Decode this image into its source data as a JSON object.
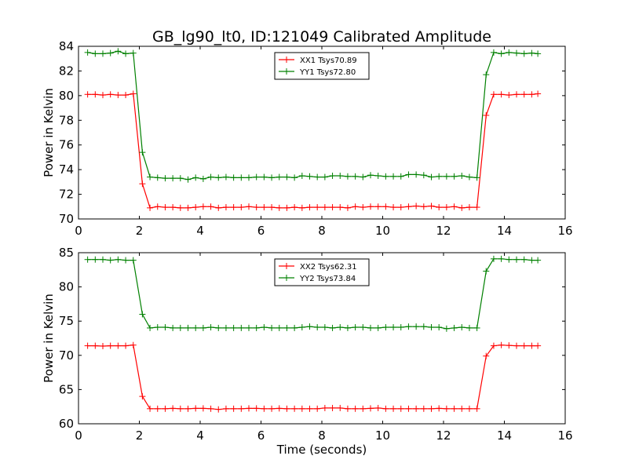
{
  "figure": {
    "title": "GB_lg90_lt0, ID:121049 Calibrated Amplitude"
  },
  "chart_data": [
    {
      "type": "line",
      "title": "GB_lg90_lt0, ID:121049 Calibrated Amplitude",
      "xlabel": "",
      "ylabel": "Power in Kelvin",
      "xlim": [
        0,
        16
      ],
      "ylim": [
        70,
        84
      ],
      "xticks": [
        0,
        2,
        4,
        6,
        8,
        10,
        12,
        14,
        16
      ],
      "yticks": [
        70,
        72,
        74,
        76,
        78,
        80,
        82,
        84
      ],
      "grid": false,
      "legend": "top-center",
      "x": [
        0.3,
        0.55,
        0.8,
        1.05,
        1.3,
        1.55,
        1.8,
        2.1,
        2.35,
        2.6,
        2.85,
        3.1,
        3.35,
        3.6,
        3.85,
        4.1,
        4.35,
        4.6,
        4.85,
        5.1,
        5.35,
        5.6,
        5.85,
        6.1,
        6.35,
        6.6,
        6.85,
        7.1,
        7.35,
        7.6,
        7.85,
        8.1,
        8.35,
        8.6,
        8.85,
        9.1,
        9.35,
        9.6,
        9.85,
        10.1,
        10.35,
        10.6,
        10.85,
        11.1,
        11.35,
        11.6,
        11.85,
        12.1,
        12.35,
        12.6,
        12.85,
        13.1,
        13.4,
        13.65,
        13.9,
        14.15,
        14.4,
        14.65,
        14.9,
        15.1
      ],
      "series": [
        {
          "name": "XX1 Tsys70.89",
          "color": "#ff0000",
          "values": [
            80.1,
            80.1,
            80.05,
            80.1,
            80.05,
            80.05,
            80.15,
            72.85,
            70.9,
            71.0,
            70.95,
            70.95,
            70.9,
            70.9,
            70.95,
            71.0,
            71.0,
            70.9,
            70.95,
            70.95,
            70.95,
            71.0,
            70.95,
            70.95,
            70.95,
            70.9,
            70.9,
            70.95,
            70.9,
            70.95,
            70.95,
            70.95,
            70.95,
            70.95,
            70.9,
            71.0,
            70.95,
            71.0,
            71.0,
            71.0,
            70.95,
            70.95,
            71.0,
            71.05,
            71.0,
            71.05,
            70.95,
            70.95,
            71.0,
            70.9,
            70.95,
            70.95,
            78.4,
            80.1,
            80.1,
            80.05,
            80.1,
            80.1,
            80.1,
            80.15
          ]
        },
        {
          "name": "YY1 Tsys72.80",
          "color": "#008000",
          "values": [
            83.5,
            83.4,
            83.4,
            83.45,
            83.6,
            83.4,
            83.45,
            75.4,
            73.4,
            73.35,
            73.3,
            73.3,
            73.3,
            73.2,
            73.35,
            73.25,
            73.4,
            73.35,
            73.4,
            73.35,
            73.35,
            73.35,
            73.4,
            73.4,
            73.35,
            73.4,
            73.4,
            73.35,
            73.5,
            73.45,
            73.4,
            73.4,
            73.5,
            73.5,
            73.45,
            73.45,
            73.4,
            73.55,
            73.5,
            73.45,
            73.45,
            73.45,
            73.6,
            73.6,
            73.55,
            73.4,
            73.45,
            73.45,
            73.45,
            73.5,
            73.4,
            73.35,
            81.7,
            83.5,
            83.4,
            83.5,
            83.45,
            83.4,
            83.45,
            83.4
          ]
        }
      ]
    },
    {
      "type": "line",
      "title": "",
      "xlabel": "Time (seconds)",
      "ylabel": "Power in Kelvin",
      "xlim": [
        0,
        16
      ],
      "ylim": [
        60,
        85
      ],
      "xticks": [
        0,
        2,
        4,
        6,
        8,
        10,
        12,
        14,
        16
      ],
      "yticks": [
        60,
        65,
        70,
        75,
        80,
        85
      ],
      "grid": false,
      "legend": "top-center",
      "x": [
        0.3,
        0.55,
        0.8,
        1.05,
        1.3,
        1.55,
        1.8,
        2.1,
        2.35,
        2.6,
        2.85,
        3.1,
        3.35,
        3.6,
        3.85,
        4.1,
        4.35,
        4.6,
        4.85,
        5.1,
        5.35,
        5.6,
        5.85,
        6.1,
        6.35,
        6.6,
        6.85,
        7.1,
        7.35,
        7.6,
        7.85,
        8.1,
        8.35,
        8.6,
        8.85,
        9.1,
        9.35,
        9.6,
        9.85,
        10.1,
        10.35,
        10.6,
        10.85,
        11.1,
        11.35,
        11.6,
        11.85,
        12.1,
        12.35,
        12.6,
        12.85,
        13.1,
        13.4,
        13.65,
        13.9,
        14.15,
        14.4,
        14.65,
        14.9,
        15.1
      ],
      "series": [
        {
          "name": "XX2 Tsys62.31",
          "color": "#ff0000",
          "values": [
            71.4,
            71.4,
            71.35,
            71.4,
            71.4,
            71.4,
            71.5,
            64.0,
            62.2,
            62.2,
            62.2,
            62.25,
            62.2,
            62.2,
            62.25,
            62.25,
            62.2,
            62.1,
            62.2,
            62.2,
            62.2,
            62.25,
            62.25,
            62.2,
            62.2,
            62.25,
            62.2,
            62.2,
            62.2,
            62.2,
            62.2,
            62.3,
            62.3,
            62.3,
            62.2,
            62.2,
            62.2,
            62.25,
            62.3,
            62.2,
            62.2,
            62.2,
            62.2,
            62.2,
            62.2,
            62.2,
            62.25,
            62.2,
            62.2,
            62.2,
            62.2,
            62.2,
            69.9,
            71.4,
            71.5,
            71.45,
            71.4,
            71.4,
            71.4,
            71.4
          ]
        },
        {
          "name": "YY2 Tsys73.84",
          "color": "#008000",
          "values": [
            84.0,
            84.0,
            84.0,
            83.9,
            84.0,
            83.9,
            83.9,
            76.0,
            74.0,
            74.1,
            74.1,
            74.0,
            74.0,
            74.0,
            74.0,
            74.0,
            74.1,
            74.0,
            74.0,
            74.0,
            74.0,
            74.0,
            74.0,
            74.1,
            74.0,
            74.0,
            74.0,
            74.0,
            74.1,
            74.2,
            74.1,
            74.1,
            74.0,
            74.1,
            74.0,
            74.1,
            74.1,
            74.0,
            74.0,
            74.1,
            74.1,
            74.1,
            74.2,
            74.2,
            74.2,
            74.1,
            74.1,
            73.9,
            74.0,
            74.1,
            74.0,
            74.0,
            82.3,
            84.1,
            84.1,
            84.0,
            84.0,
            84.0,
            83.9,
            83.9
          ]
        }
      ]
    }
  ]
}
